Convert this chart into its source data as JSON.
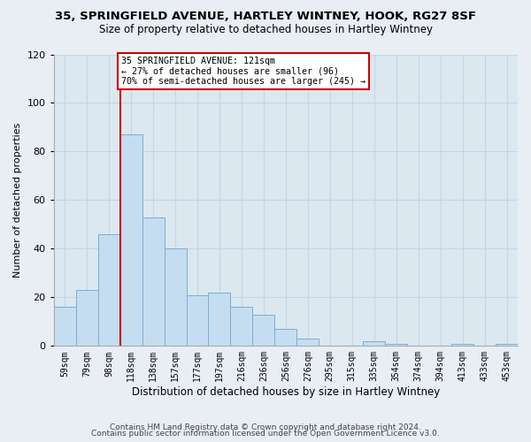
{
  "title_line1": "35, SPRINGFIELD AVENUE, HARTLEY WINTNEY, HOOK, RG27 8SF",
  "title_line2": "Size of property relative to detached houses in Hartley Wintney",
  "xlabel": "Distribution of detached houses by size in Hartley Wintney",
  "ylabel": "Number of detached properties",
  "bin_labels": [
    "59sqm",
    "79sqm",
    "98sqm",
    "118sqm",
    "138sqm",
    "157sqm",
    "177sqm",
    "197sqm",
    "216sqm",
    "236sqm",
    "256sqm",
    "276sqm",
    "295sqm",
    "315sqm",
    "335sqm",
    "354sqm",
    "374sqm",
    "394sqm",
    "413sqm",
    "433sqm",
    "453sqm"
  ],
  "bar_heights": [
    16,
    23,
    46,
    87,
    53,
    40,
    21,
    22,
    16,
    13,
    7,
    3,
    0,
    0,
    2,
    1,
    0,
    0,
    1,
    0,
    1
  ],
  "bar_color": "#c5ddf0",
  "bar_edge_color": "#7aaed4",
  "vline_x_index": 3,
  "vline_color": "#cc0000",
  "annotation_title": "35 SPRINGFIELD AVENUE: 121sqm",
  "annotation_line1": "← 27% of detached houses are smaller (96)",
  "annotation_line2": "70% of semi-detached houses are larger (245) →",
  "annotation_box_color": "#ffffff",
  "annotation_box_edge": "#cc0000",
  "ylim": [
    0,
    120
  ],
  "yticks": [
    0,
    20,
    40,
    60,
    80,
    100,
    120
  ],
  "footer_line1": "Contains HM Land Registry data © Crown copyright and database right 2024.",
  "footer_line2": "Contains public sector information licensed under the Open Government Licence v3.0.",
  "bg_color": "#e8eef4",
  "plot_bg_color": "#dce8f0",
  "grid_color": "#c5d5e5"
}
